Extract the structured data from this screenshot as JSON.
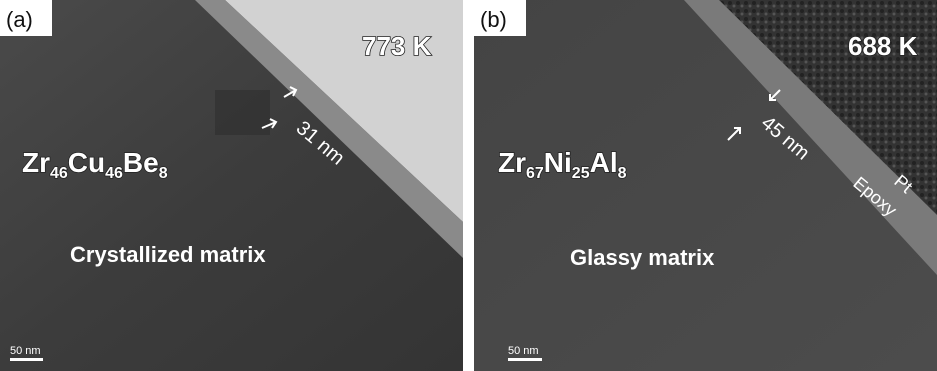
{
  "panels": [
    {
      "label": "(a)",
      "temperature": "773 K",
      "thickness": "31 nm",
      "composition": [
        {
          "element": "Zr",
          "sub": "46"
        },
        {
          "element": "Cu",
          "sub": "46"
        },
        {
          "element": "Be",
          "sub": "8"
        }
      ],
      "matrix": "Crystallized matrix",
      "scale_bar": "50 nm"
    },
    {
      "label": "(b)",
      "temperature": "688 K",
      "thickness": "45 nm",
      "composition": [
        {
          "element": "Zr",
          "sub": "67"
        },
        {
          "element": "Ni",
          "sub": "25"
        },
        {
          "element": "Al",
          "sub": "8"
        }
      ],
      "matrix": "Glassy matrix",
      "scale_bar": "50 nm",
      "layers": [
        "Pt",
        "Epoxy"
      ]
    }
  ]
}
